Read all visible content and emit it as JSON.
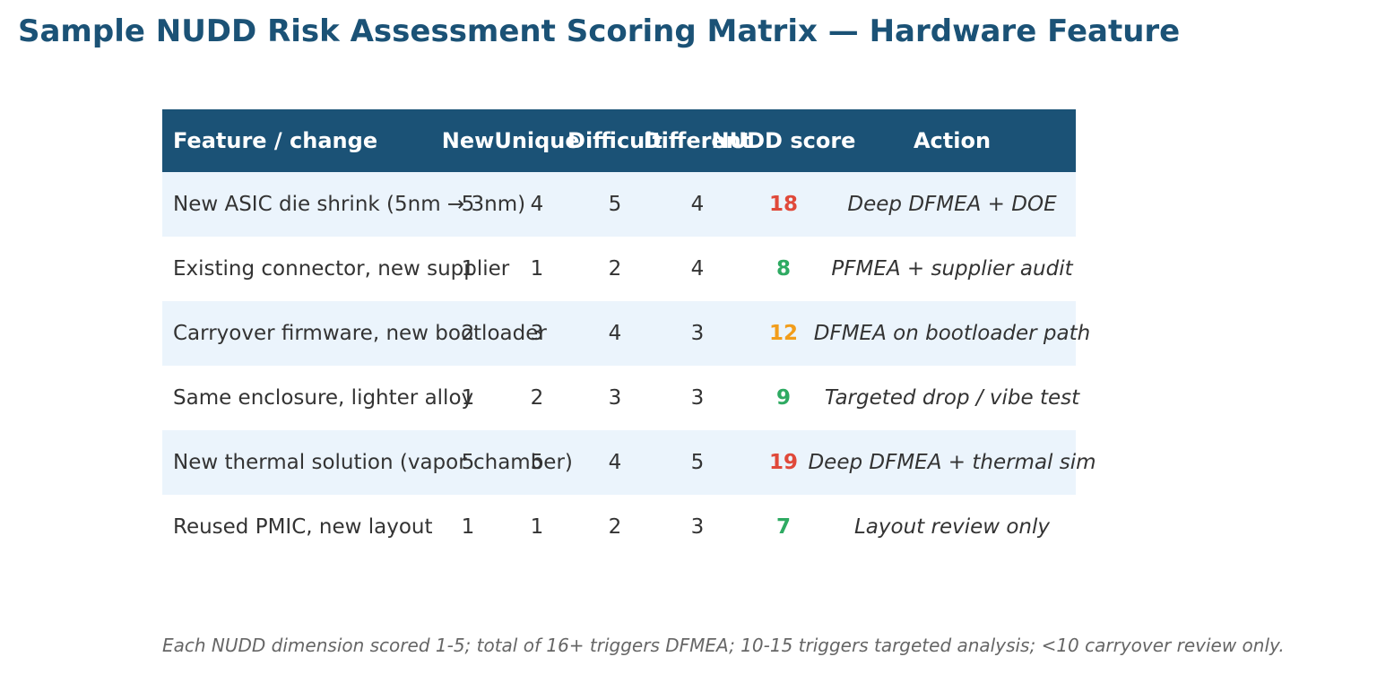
{
  "title": "Sample NUDD Risk Assessment Scoring Matrix — Hardware Feature",
  "colors": {
    "header_bg": "#1b5276",
    "title": "#1b5276",
    "row_shade": "#ebf4fc",
    "score_high": "#e0493a",
    "score_medium": "#f29d1b",
    "score_low": "#2eaa62"
  },
  "table": {
    "headers": {
      "feature": "Feature / change",
      "new": "New",
      "unique": "Unique",
      "difficult": "Difficult",
      "different": "Different",
      "score": "NUDD score",
      "action": "Action"
    },
    "rows": [
      {
        "feature": "New ASIC die shrink (5nm → 3nm)",
        "new": "5",
        "unique": "4",
        "difficult": "5",
        "different": "4",
        "score": "18",
        "level": "high",
        "action": "Deep DFMEA + DOE"
      },
      {
        "feature": "Existing connector, new supplier",
        "new": "1",
        "unique": "1",
        "difficult": "2",
        "different": "4",
        "score": "8",
        "level": "low",
        "action": "PFMEA + supplier audit"
      },
      {
        "feature": "Carryover firmware, new bootloader",
        "new": "2",
        "unique": "3",
        "difficult": "4",
        "different": "3",
        "score": "12",
        "level": "medium",
        "action": "DFMEA on bootloader path"
      },
      {
        "feature": "Same enclosure, lighter alloy",
        "new": "1",
        "unique": "2",
        "difficult": "3",
        "different": "3",
        "score": "9",
        "level": "low",
        "action": "Targeted drop / vibe test"
      },
      {
        "feature": "New thermal solution (vapor chamber)",
        "new": "5",
        "unique": "5",
        "difficult": "4",
        "different": "5",
        "score": "19",
        "level": "high",
        "action": "Deep DFMEA + thermal sim"
      },
      {
        "feature": "Reused PMIC, new layout",
        "new": "1",
        "unique": "1",
        "difficult": "2",
        "different": "3",
        "score": "7",
        "level": "low",
        "action": "Layout review only"
      }
    ]
  },
  "footnote": "Each NUDD dimension scored 1-5; total of 16+ triggers DFMEA; 10-15 triggers targeted analysis; <10 carryover review only."
}
